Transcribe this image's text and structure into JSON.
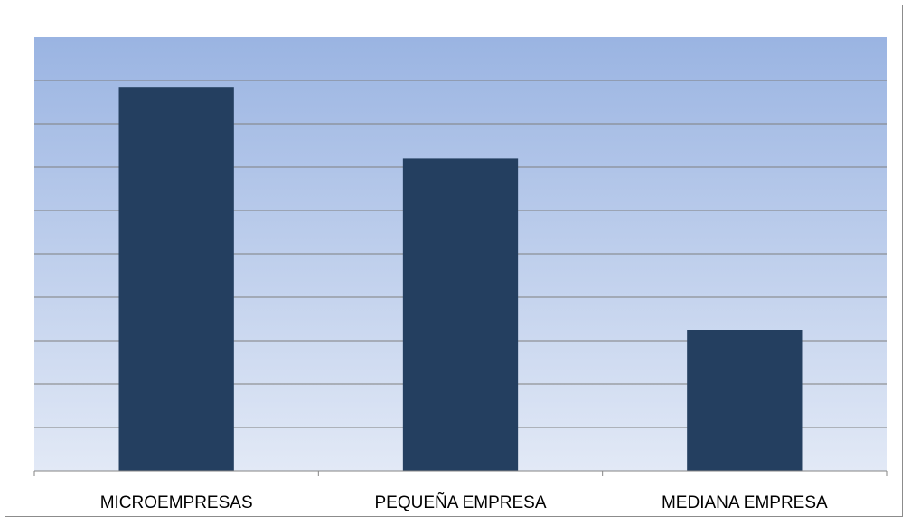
{
  "chart_data": {
    "type": "bar",
    "title": "",
    "xlabel": "",
    "ylabel": "",
    "categories": [
      "MICROEMPRESAS",
      "PEQUEÑA EMPRESA",
      "MEDIANA EMPRESA"
    ],
    "values": [
      8.85,
      7.2,
      3.25
    ],
    "ylim": [
      0,
      10
    ],
    "grid": true,
    "legend": "none",
    "colors": {
      "bar": "#243f60",
      "plot_gradient_top": "#9ab4e2",
      "plot_gradient_bottom": "#e2e9f6",
      "gridline": "#7f7f7f",
      "axis": "#868686"
    }
  }
}
